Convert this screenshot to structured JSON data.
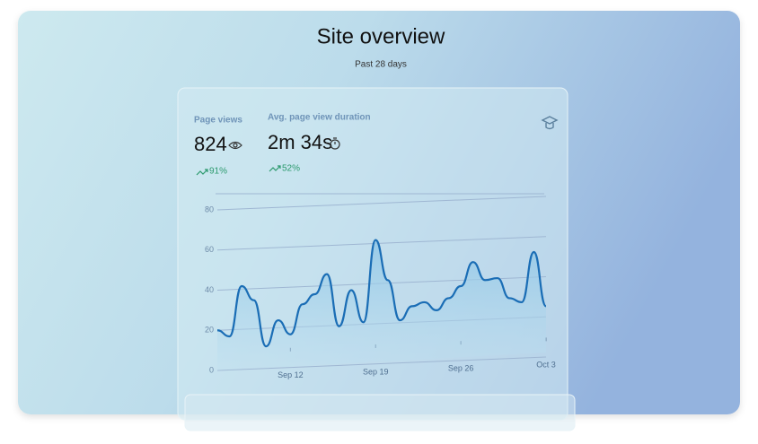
{
  "header": {
    "title": "Site overview",
    "subtitle": "Past 28 days"
  },
  "metrics": [
    {
      "label": "Page views",
      "value": "824",
      "change": "91%"
    },
    {
      "label": "Avg. page view duration",
      "value": "2m 34s",
      "change": "52%"
    }
  ],
  "chart_data": {
    "type": "line",
    "categories": [
      null,
      null,
      null,
      null,
      null,
      null,
      "Sep 12",
      null,
      null,
      null,
      null,
      null,
      null,
      "Sep 19",
      null,
      null,
      null,
      null,
      null,
      null,
      "Sep 26",
      null,
      null,
      null,
      null,
      null,
      null,
      "Oct 3"
    ],
    "series": [
      {
        "color": "#1a6db5",
        "values": [
          20,
          17,
          42,
          35,
          12,
          25,
          18,
          33,
          38,
          48,
          22,
          40,
          24,
          65,
          45,
          25,
          32,
          34,
          30,
          36,
          42,
          54,
          45,
          46,
          36,
          34,
          59,
          32
        ]
      }
    ],
    "ylim": [
      0,
      80
    ],
    "yticks": [
      0,
      20,
      40,
      60,
      80
    ],
    "grid": true
  }
}
